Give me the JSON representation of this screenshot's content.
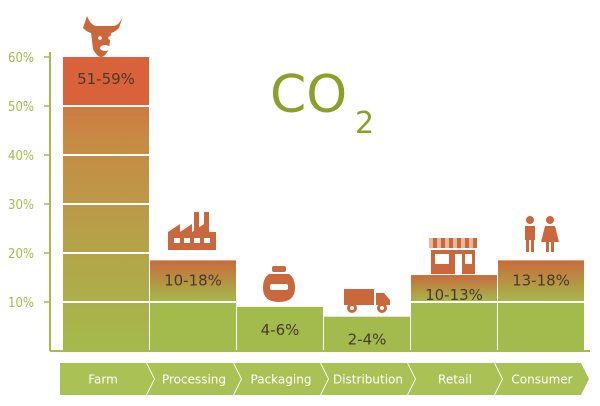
{
  "chart_data": {
    "type": "bar",
    "title": "CO",
    "title_subscript": "2",
    "categories": [
      "Farm",
      "Processing",
      "Packaging",
      "Distribution",
      "Retail",
      "Consumer"
    ],
    "ranges": [
      [
        51,
        59
      ],
      [
        10,
        18
      ],
      [
        4,
        6
      ],
      [
        2,
        4
      ],
      [
        10,
        13
      ],
      [
        13,
        18
      ]
    ],
    "values": [
      60,
      18.5,
      9,
      7,
      15.5,
      18.5
    ],
    "value_labels": [
      "51-59%",
      "10-18%",
      "4-6%",
      "2-4%",
      "10-13%",
      "13-18%"
    ],
    "y_ticks": [
      "10%",
      "20%",
      "30%",
      "40%",
      "50%",
      "60%"
    ],
    "ylim": [
      0,
      60
    ],
    "icons": [
      "cow-icon",
      "factory-icon",
      "jar-icon",
      "truck-icon",
      "shop-icon",
      "people-icon"
    ],
    "colors": {
      "axis": "#a9b94c",
      "base": "#a3bb4c",
      "grad_bottom": "#a3bb4c",
      "grad_top": "#c96a3c",
      "farm_top": "#d9623a",
      "category_arrow": "#a9c155",
      "title": "#8aa029",
      "icon": "#c9683c"
    }
  }
}
